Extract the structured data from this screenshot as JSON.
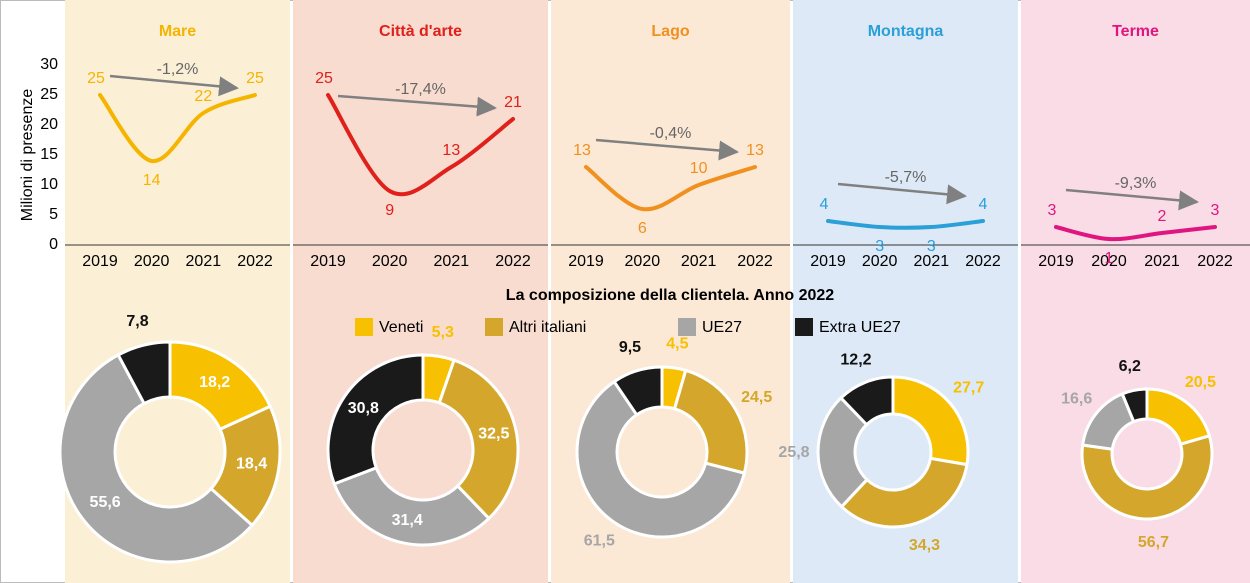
{
  "chart_data": [
    {
      "type": "line",
      "title": "Mare",
      "color": "#f5b400",
      "categories": [
        "2019",
        "2020",
        "2021",
        "2022"
      ],
      "values": [
        25,
        14,
        22,
        25
      ],
      "annotation": "-1,2%",
      "ylim": [
        0,
        30
      ],
      "yticks": [
        0,
        5,
        10,
        15,
        20,
        25,
        30
      ],
      "y_label": "Milioni di presenze"
    },
    {
      "type": "line",
      "title": "Città d'arte",
      "color": "#e0201b",
      "categories": [
        "2019",
        "2020",
        "2021",
        "2022"
      ],
      "values": [
        25,
        9,
        13,
        21
      ],
      "annotation": "-17,4%",
      "ylim": [
        0,
        30
      ]
    },
    {
      "type": "line",
      "title": "Lago",
      "color": "#f0901e",
      "categories": [
        "2019",
        "2020",
        "2021",
        "2022"
      ],
      "values": [
        13,
        6,
        10,
        13
      ],
      "annotation": "-0,4%",
      "ylim": [
        0,
        30
      ]
    },
    {
      "type": "line",
      "title": "Montagna",
      "color": "#2a9fd8",
      "categories": [
        "2019",
        "2020",
        "2021",
        "2022"
      ],
      "values": [
        4,
        3,
        3,
        4
      ],
      "annotation": "-5,7%",
      "ylim": [
        0,
        30
      ]
    },
    {
      "type": "line",
      "title": "Terme",
      "color": "#e0157f",
      "categories": [
        "2019",
        "2020",
        "2021",
        "2022"
      ],
      "values": [
        3,
        1,
        2,
        3
      ],
      "annotation": "-9,3%",
      "ylim": [
        0,
        30
      ]
    },
    {
      "type": "donut",
      "title": "La composizione della clientela. Anno 2022",
      "categories": [
        "Veneti",
        "Altri italiani",
        "UE27",
        "Extra UE27"
      ],
      "colors": [
        "#f7c000",
        "#d4a72c",
        "#a6a6a6",
        "#1a1a1a"
      ],
      "series": [
        {
          "values": [
            18.2,
            18.4,
            55.6,
            7.8
          ],
          "value_labels": [
            "18,2",
            "18,4",
            "55,6",
            "7,8"
          ]
        },
        {
          "values": [
            5.3,
            32.5,
            31.4,
            30.8
          ],
          "value_labels": [
            "5,3",
            "32,5",
            "31,4",
            "30,8"
          ]
        },
        {
          "values": [
            4.5,
            24.5,
            61.5,
            9.5
          ],
          "value_labels": [
            "4,5",
            "24,5",
            "61,5",
            "9,5"
          ]
        },
        {
          "values": [
            27.7,
            34.3,
            25.8,
            12.2
          ],
          "value_labels": [
            "27,7",
            "34,3",
            "25,8",
            "12,2"
          ]
        },
        {
          "values": [
            20.5,
            56.7,
            16.6,
            6.2
          ],
          "value_labels": [
            "20,5",
            "56,7",
            "16,6",
            "6,2"
          ]
        }
      ]
    }
  ]
}
